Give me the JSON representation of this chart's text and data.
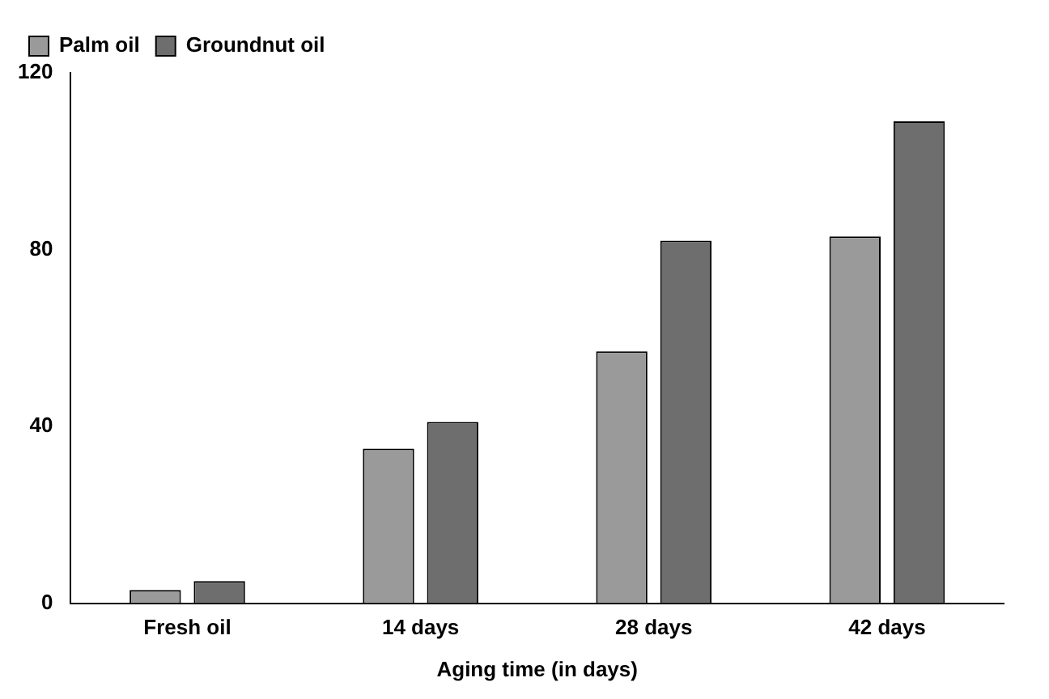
{
  "chart_data": {
    "type": "bar",
    "xlabel": "Aging time (in days)",
    "categories": [
      "Fresh oil",
      "14 days",
      "28 days",
      "42 days"
    ],
    "series": [
      {
        "name": "Palm oil",
        "color": "#9a9a9a",
        "values": [
          3,
          35,
          57,
          83
        ]
      },
      {
        "name": "Groundnut oil",
        "color": "#6e6e6e",
        "values": [
          5,
          41,
          82,
          109
        ]
      }
    ],
    "ylim": [
      0,
      120
    ],
    "yticks": [
      0,
      40,
      80,
      120
    ],
    "grid": false,
    "legend": "top left"
  }
}
